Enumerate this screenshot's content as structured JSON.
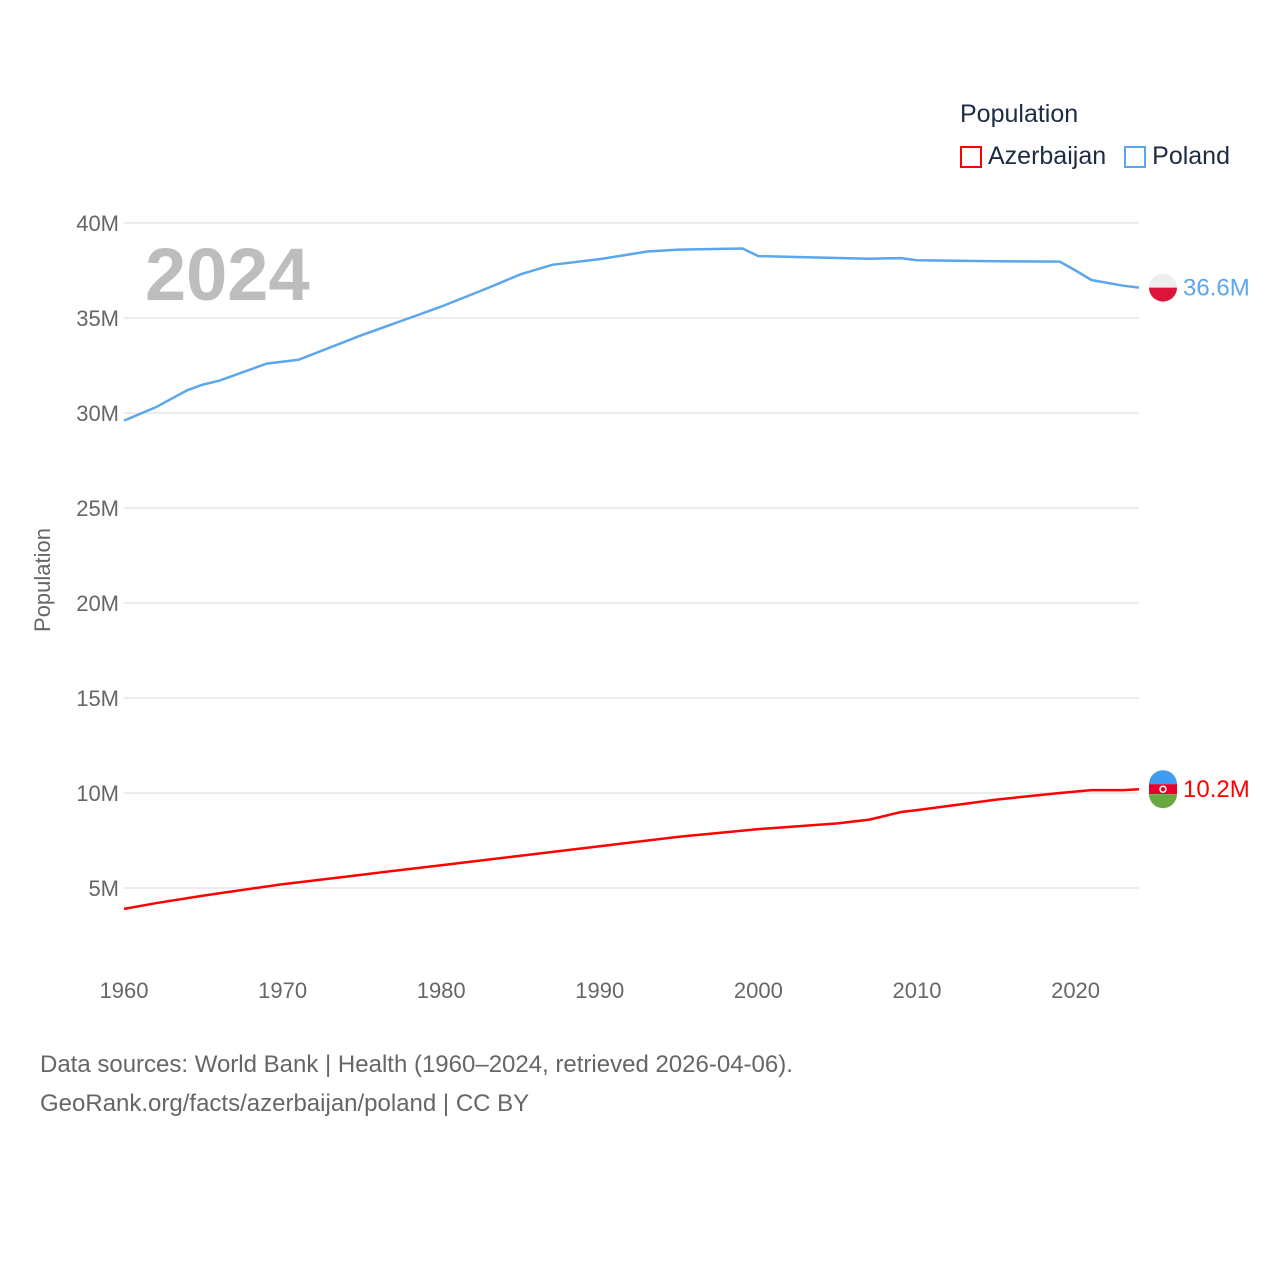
{
  "chart_data": {
    "type": "line",
    "title": "Population",
    "ylabel": "Population",
    "xlabel": "",
    "year_label": "2024",
    "xlim": [
      1960,
      2024
    ],
    "ylim": [
      0,
      40000000
    ],
    "x_ticks": [
      "1960",
      "1970",
      "1980",
      "1990",
      "2000",
      "2010",
      "2020"
    ],
    "y_ticks": [
      "5M",
      "10M",
      "15M",
      "20M",
      "25M",
      "30M",
      "35M",
      "40M"
    ],
    "legend_placement": "top-right",
    "series": [
      {
        "name": "Azerbaijan",
        "color": "#ff0000",
        "end_label": "10.2M",
        "x": [
          1960,
          1962,
          1965,
          1970,
          1975,
          1980,
          1985,
          1990,
          1995,
          2000,
          2005,
          2007,
          2009,
          2010,
          2015,
          2019,
          2021,
          2023,
          2024
        ],
        "values": [
          3.9,
          4.2,
          4.6,
          5.2,
          5.7,
          6.2,
          6.7,
          7.2,
          7.7,
          8.1,
          8.4,
          8.6,
          9.0,
          9.1,
          9.65,
          10.0,
          10.15,
          10.15,
          10.2
        ]
      },
      {
        "name": "Poland",
        "color": "#5ba6ec",
        "end_label": "36.6M",
        "x": [
          1960,
          1962,
          1964,
          1965,
          1966,
          1968,
          1969,
          1971,
          1975,
          1978,
          1980,
          1983,
          1985,
          1987,
          1990,
          1993,
          1995,
          1999,
          2000,
          2003,
          2007,
          2009,
          2010,
          2015,
          2019,
          2020,
          2021,
          2023,
          2024
        ],
        "values": [
          29.6,
          30.3,
          31.2,
          31.5,
          31.7,
          32.3,
          32.6,
          32.8,
          34.1,
          35.0,
          35.6,
          36.6,
          37.3,
          37.8,
          38.1,
          38.5,
          38.6,
          38.66,
          38.26,
          38.2,
          38.12,
          38.15,
          38.04,
          37.99,
          37.97,
          37.5,
          37.0,
          36.7,
          36.6
        ]
      }
    ]
  },
  "footer": {
    "line1": "Data sources: World Bank | Health (1960–2024, retrieved 2026-04-06).",
    "line2": "GeoRank.org/facts/azerbaijan/poland | CC BY"
  }
}
